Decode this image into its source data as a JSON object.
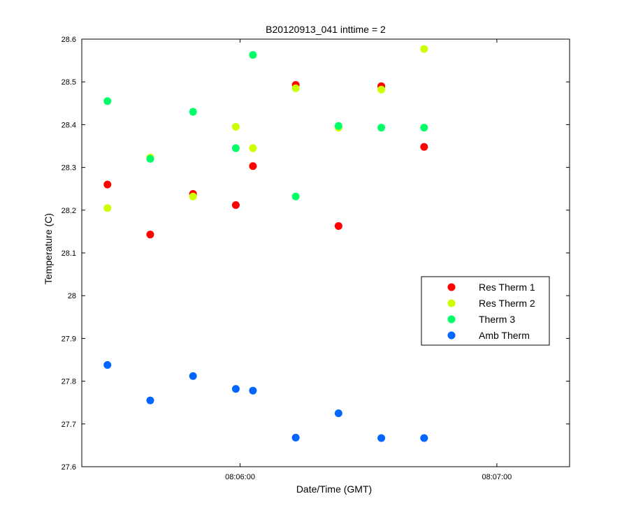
{
  "chart_data": {
    "type": "scatter",
    "title": "B20120913_041 inttime = 2",
    "xlabel": "Date/Time (GMT)",
    "ylabel": "Temperature (C)",
    "x_unit": "time",
    "xlim": [
      "08:05:23",
      "08:07:17"
    ],
    "ylim": [
      27.6,
      28.6
    ],
    "xticks": [
      "08:06:00",
      "08:07:00"
    ],
    "yticks": [
      27.6,
      27.7,
      27.8,
      27.9,
      28,
      28.1,
      28.2,
      28.3,
      28.4,
      28.5,
      28.6
    ],
    "grid": false,
    "legend": {
      "position": "right"
    },
    "x": [
      "08:05:29",
      "08:05:39",
      "08:05:49",
      "08:05:59",
      "08:06:03",
      "08:06:13",
      "08:06:23",
      "08:06:33",
      "08:06:43"
    ],
    "series": [
      {
        "name": "Res Therm 1",
        "color": "#ff0000",
        "values": [
          28.26,
          28.143,
          28.238,
          28.212,
          28.303,
          28.493,
          28.163,
          28.49,
          28.348
        ]
      },
      {
        "name": "Res Therm 2",
        "color": "#ccff00",
        "values": [
          28.205,
          28.323,
          28.232,
          28.395,
          28.345,
          28.485,
          28.393,
          28.482,
          28.577
        ]
      },
      {
        "name": "Therm 3",
        "color": "#00ff66",
        "values": [
          28.455,
          28.32,
          28.43,
          28.345,
          28.563,
          28.232,
          28.397,
          28.393,
          28.393
        ]
      },
      {
        "name": "Amb Therm",
        "color": "#0066ff",
        "values": [
          27.838,
          27.755,
          27.812,
          27.782,
          27.778,
          27.668,
          27.725,
          27.667,
          27.667
        ]
      }
    ]
  }
}
